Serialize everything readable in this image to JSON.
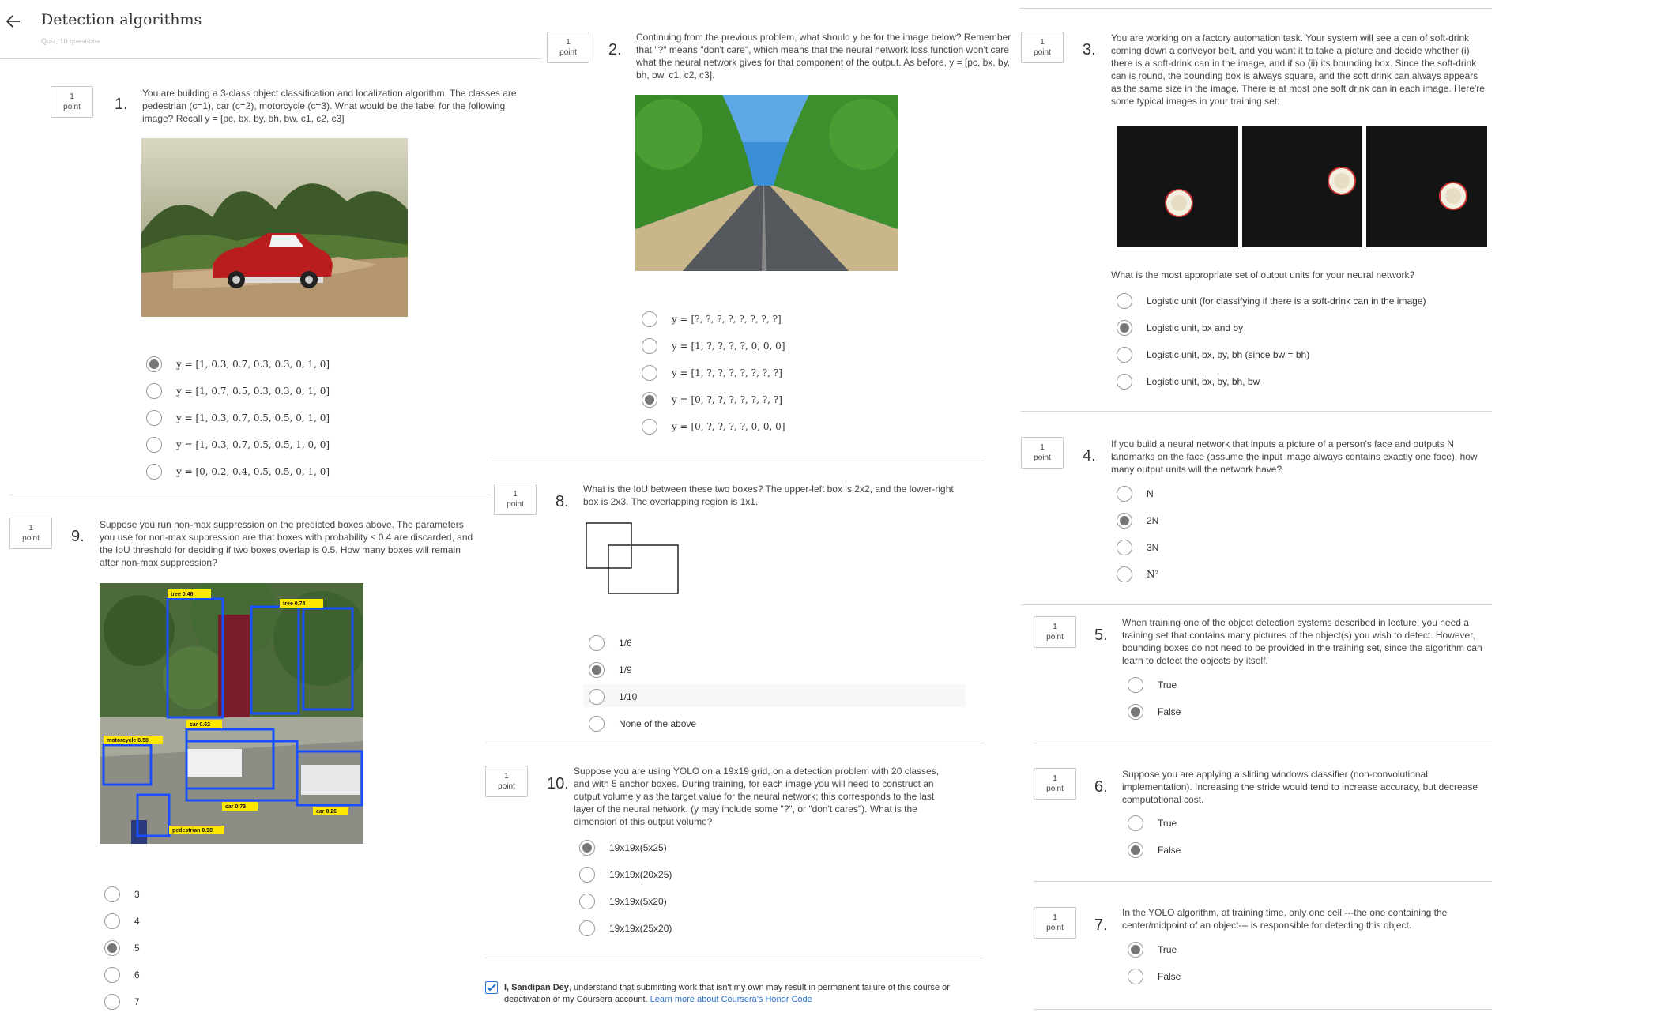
{
  "header": {
    "back_icon": "arrow-left-icon",
    "title": "Detection algorithms",
    "subtitle": "Quiz, 10 questions"
  },
  "point_label": [
    "1",
    "point"
  ],
  "q1": {
    "num": "1.",
    "text": "You are building a 3-class object classification and localization algorithm. The classes are: pedestrian (c=1), car (c=2), motorcycle (c=3). What would be the label for the following image? Recall y = [pc, bx, by, bh, bw, c1, c2, c3]",
    "options": [
      "y = [1, 0.3, 0.7, 0.3, 0.3, 0, 1, 0]",
      "y = [1, 0.7, 0.5, 0.3, 0.3, 0, 1, 0]",
      "y = [1, 0.3, 0.7, 0.5, 0.5, 0, 1, 0]",
      "y = [1, 0.3, 0.7, 0.5, 0.5, 1, 0, 0]",
      "y = [0, 0.2, 0.4, 0.5, 0.5, 0, 1, 0]"
    ],
    "selected": 0
  },
  "q2": {
    "num": "2.",
    "text": "Continuing from the previous problem, what should y be for the image below? Remember that \"?\" means \"don't care\", which means that the neural network loss function won't care what the neural network gives for that component of the output. As before, y = [pc, bx, by, bh, bw, c1, c2, c3].",
    "options": [
      "y = [?, ?, ?, ?, ?, ?, ?, ?]",
      "y = [1, ?, ?, ?, ?, 0, 0, 0]",
      "y = [1, ?, ?, ?, ?, ?, ?, ?]",
      "y = [0, ?, ?, ?, ?, ?, ?, ?]",
      "y = [0, ?, ?, ?, ?, 0, 0, 0]"
    ],
    "selected": 3
  },
  "q3": {
    "num": "3.",
    "text": "You are working on a factory automation task. Your system will see a can of soft-drink coming down a conveyor belt, and you want it to take a picture and decide whether (i) there is a soft-drink can in the image, and if so (ii) its bounding box. Since the soft-drink can is round, the bounding box is always square, and the soft drink can always appears as the same size in the image. There is at most one soft drink can in each image. Here're some typical images in your training set:",
    "question": "What is the most appropriate set of output units for your neural network?",
    "options": [
      "Logistic unit (for classifying if there is a soft-drink can in the image)",
      "Logistic unit, bx and by",
      "Logistic unit, bx, by, bh (since bw = bh)",
      "Logistic unit, bx, by, bh, bw"
    ],
    "selected": 1
  },
  "q4": {
    "num": "4.",
    "text": "If you build a neural network that inputs a picture of a person's face and outputs N landmarks on the face (assume the input image always contains exactly one face), how many output units will the network have?",
    "options": [
      "N",
      "2N",
      "3N",
      "N²"
    ],
    "selected": 1
  },
  "q5": {
    "num": "5.",
    "text": "When training one of the object detection systems described in lecture, you need a training set that contains many pictures of the object(s) you wish to detect. However, bounding boxes do not need to be provided in the training set, since the algorithm can learn to detect the objects by itself.",
    "options": [
      "True",
      "False"
    ],
    "selected": 1
  },
  "q6": {
    "num": "6.",
    "text": "Suppose you are applying a sliding windows classifier (non-convolutional implementation). Increasing the stride would tend to increase accuracy, but decrease computational cost.",
    "options": [
      "True",
      "False"
    ],
    "selected": 1
  },
  "q7": {
    "num": "7.",
    "text": "In the YOLO algorithm, at training time, only one cell ---the one containing the center/midpoint of an object--- is responsible for detecting this object.",
    "options": [
      "True",
      "False"
    ],
    "selected": 0
  },
  "q8": {
    "num": "8.",
    "text": "What is the IoU between these two boxes? The upper-left box is 2x2, and the lower-right box is 2x3. The overlapping region is 1x1.",
    "options": [
      "1/6",
      "1/9",
      "1/10",
      "None of the above"
    ],
    "selected": 1
  },
  "q9": {
    "num": "9.",
    "text": "Suppose you run non-max suppression on the predicted boxes above. The parameters you use for non-max suppression are that boxes with probability ≤ 0.4 are discarded, and the IoU threshold for deciding if two boxes overlap is 0.5. How many boxes will remain after non-max suppression?",
    "options": [
      "3",
      "4",
      "5",
      "6",
      "7"
    ],
    "selected": 2,
    "box_labels": [
      "tree 0.46",
      "tree 0.74",
      "car 0.62",
      "motorcycle 0.58",
      "car 0.73",
      "car 0.26",
      "pedestrian 0.98"
    ]
  },
  "q10": {
    "num": "10.",
    "text": "Suppose you are using YOLO on a 19x19 grid, on a detection problem with 20 classes, and with 5 anchor boxes. During training, for each image you will need to construct an output volume y as the target value for the neural network; this corresponds to the last layer of the neural network. (y may include some \"?\", or \"don't cares\"). What is the dimension of this output volume?",
    "options": [
      "19x19x(5x25)",
      "19x19x(20x25)",
      "19x19x(5x20)",
      "19x19x(25x20)"
    ],
    "selected": 0
  },
  "honor": {
    "name": "I, Sandipan Dey",
    "text": ", understand that submitting work that isn't my own may result in permanent failure of this course or deactivation of my Coursera account.",
    "link": "Learn more about Coursera's Honor Code",
    "checked": true
  },
  "colors": {
    "accent": "#2a73cc",
    "box_blue": "#1a4fff",
    "label_yellow": "#ffe800"
  }
}
